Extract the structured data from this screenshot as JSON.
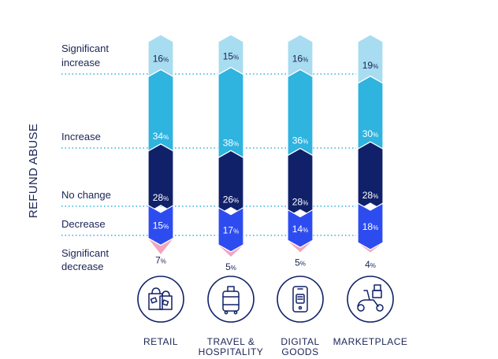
{
  "chart_data": {
    "type": "bar",
    "stacked": true,
    "ylabel": "REFUND ABUSE",
    "row_labels": [
      [
        "Significant",
        "increase"
      ],
      [
        "Increase"
      ],
      [
        "No change"
      ],
      [
        "Decrease"
      ],
      [
        "Significant",
        "decrease"
      ]
    ],
    "categories": [
      {
        "label": [
          "RETAIL"
        ],
        "icon": "shopping-bags-icon"
      },
      {
        "label": [
          "TRAVEL &",
          "HOSPITALITY"
        ],
        "icon": "suitcase-icon"
      },
      {
        "label": [
          "DIGITAL",
          "GOODS"
        ],
        "icon": "smartphone-icon"
      },
      {
        "label": [
          "MARKETPLACE"
        ],
        "icon": "delivery-scooter-icon"
      }
    ],
    "series": [
      {
        "name": "Significant increase",
        "color": "#a8dcf0",
        "values": [
          16,
          15,
          16,
          19
        ]
      },
      {
        "name": "Increase",
        "color": "#2fb3df",
        "values": [
          34,
          38,
          36,
          30
        ]
      },
      {
        "name": "No change",
        "color": "#10216a",
        "values": [
          28,
          26,
          28,
          28
        ]
      },
      {
        "name": "Decrease",
        "color": "#2d4cf0",
        "values": [
          15,
          17,
          14,
          18
        ]
      },
      {
        "name": "Significant decrease",
        "color": "#f2a5bd",
        "values": [
          7,
          5,
          5,
          4
        ]
      }
    ],
    "percent_sign": "%",
    "grid": false
  }
}
